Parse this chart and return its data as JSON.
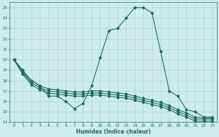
{
  "line1_x": [
    0,
    1,
    2,
    3,
    4,
    5,
    6,
    7,
    8,
    9,
    10,
    11,
    12,
    13,
    14,
    15,
    16,
    17,
    18,
    19,
    20,
    21,
    22,
    23
  ],
  "line1_y": [
    20,
    19,
    18,
    17.5,
    16.5,
    16.5,
    16,
    15.3,
    15.8,
    17.5,
    20.2,
    22.8,
    23,
    24,
    25,
    25,
    24.5,
    20.8,
    17,
    16.5,
    15.2,
    15,
    14.5,
    14.5
  ],
  "line2_x": [
    0,
    1,
    2,
    3,
    4,
    5,
    6,
    7,
    8,
    9,
    10,
    11,
    12,
    13,
    14,
    15,
    16,
    17,
    18,
    19,
    20,
    21,
    22,
    23
  ],
  "line2_y": [
    20,
    18.8,
    18.0,
    17.5,
    17.2,
    17.1,
    17.0,
    16.9,
    16.9,
    17.0,
    17.0,
    16.9,
    16.8,
    16.7,
    16.5,
    16.3,
    16.1,
    15.9,
    15.6,
    15.2,
    14.9,
    14.5,
    14.4,
    14.4
  ],
  "line3_x": [
    0,
    1,
    2,
    3,
    4,
    5,
    6,
    7,
    8,
    9,
    10,
    11,
    12,
    13,
    14,
    15,
    16,
    17,
    18,
    19,
    20,
    21,
    22,
    23
  ],
  "line3_y": [
    20,
    18.7,
    17.8,
    17.3,
    17.0,
    16.9,
    16.8,
    16.7,
    16.7,
    16.8,
    16.8,
    16.7,
    16.6,
    16.5,
    16.3,
    16.1,
    15.9,
    15.7,
    15.4,
    15.0,
    14.7,
    14.3,
    14.3,
    14.3
  ],
  "line4_x": [
    0,
    1,
    2,
    3,
    4,
    5,
    6,
    7,
    8,
    9,
    10,
    11,
    12,
    13,
    14,
    15,
    16,
    17,
    18,
    19,
    20,
    21,
    22,
    23
  ],
  "line4_y": [
    20,
    18.6,
    17.6,
    17.1,
    16.8,
    16.7,
    16.6,
    16.5,
    16.5,
    16.6,
    16.6,
    16.5,
    16.4,
    16.3,
    16.1,
    15.9,
    15.7,
    15.5,
    15.2,
    14.8,
    14.5,
    14.1,
    14.1,
    14.1
  ],
  "color": "#1a6b5e",
  "bg_color": "#ceecea",
  "grid_color": "#aed4d0",
  "xlabel": "Humidex (Indice chaleur)",
  "xlim": [
    -0.5,
    23.5
  ],
  "ylim": [
    14,
    25.5
  ],
  "yticks": [
    14,
    15,
    16,
    17,
    18,
    19,
    20,
    21,
    22,
    23,
    24,
    25
  ],
  "xticks": [
    0,
    1,
    2,
    3,
    4,
    5,
    6,
    7,
    8,
    9,
    10,
    11,
    12,
    13,
    14,
    15,
    16,
    17,
    18,
    19,
    20,
    21,
    22,
    23
  ]
}
